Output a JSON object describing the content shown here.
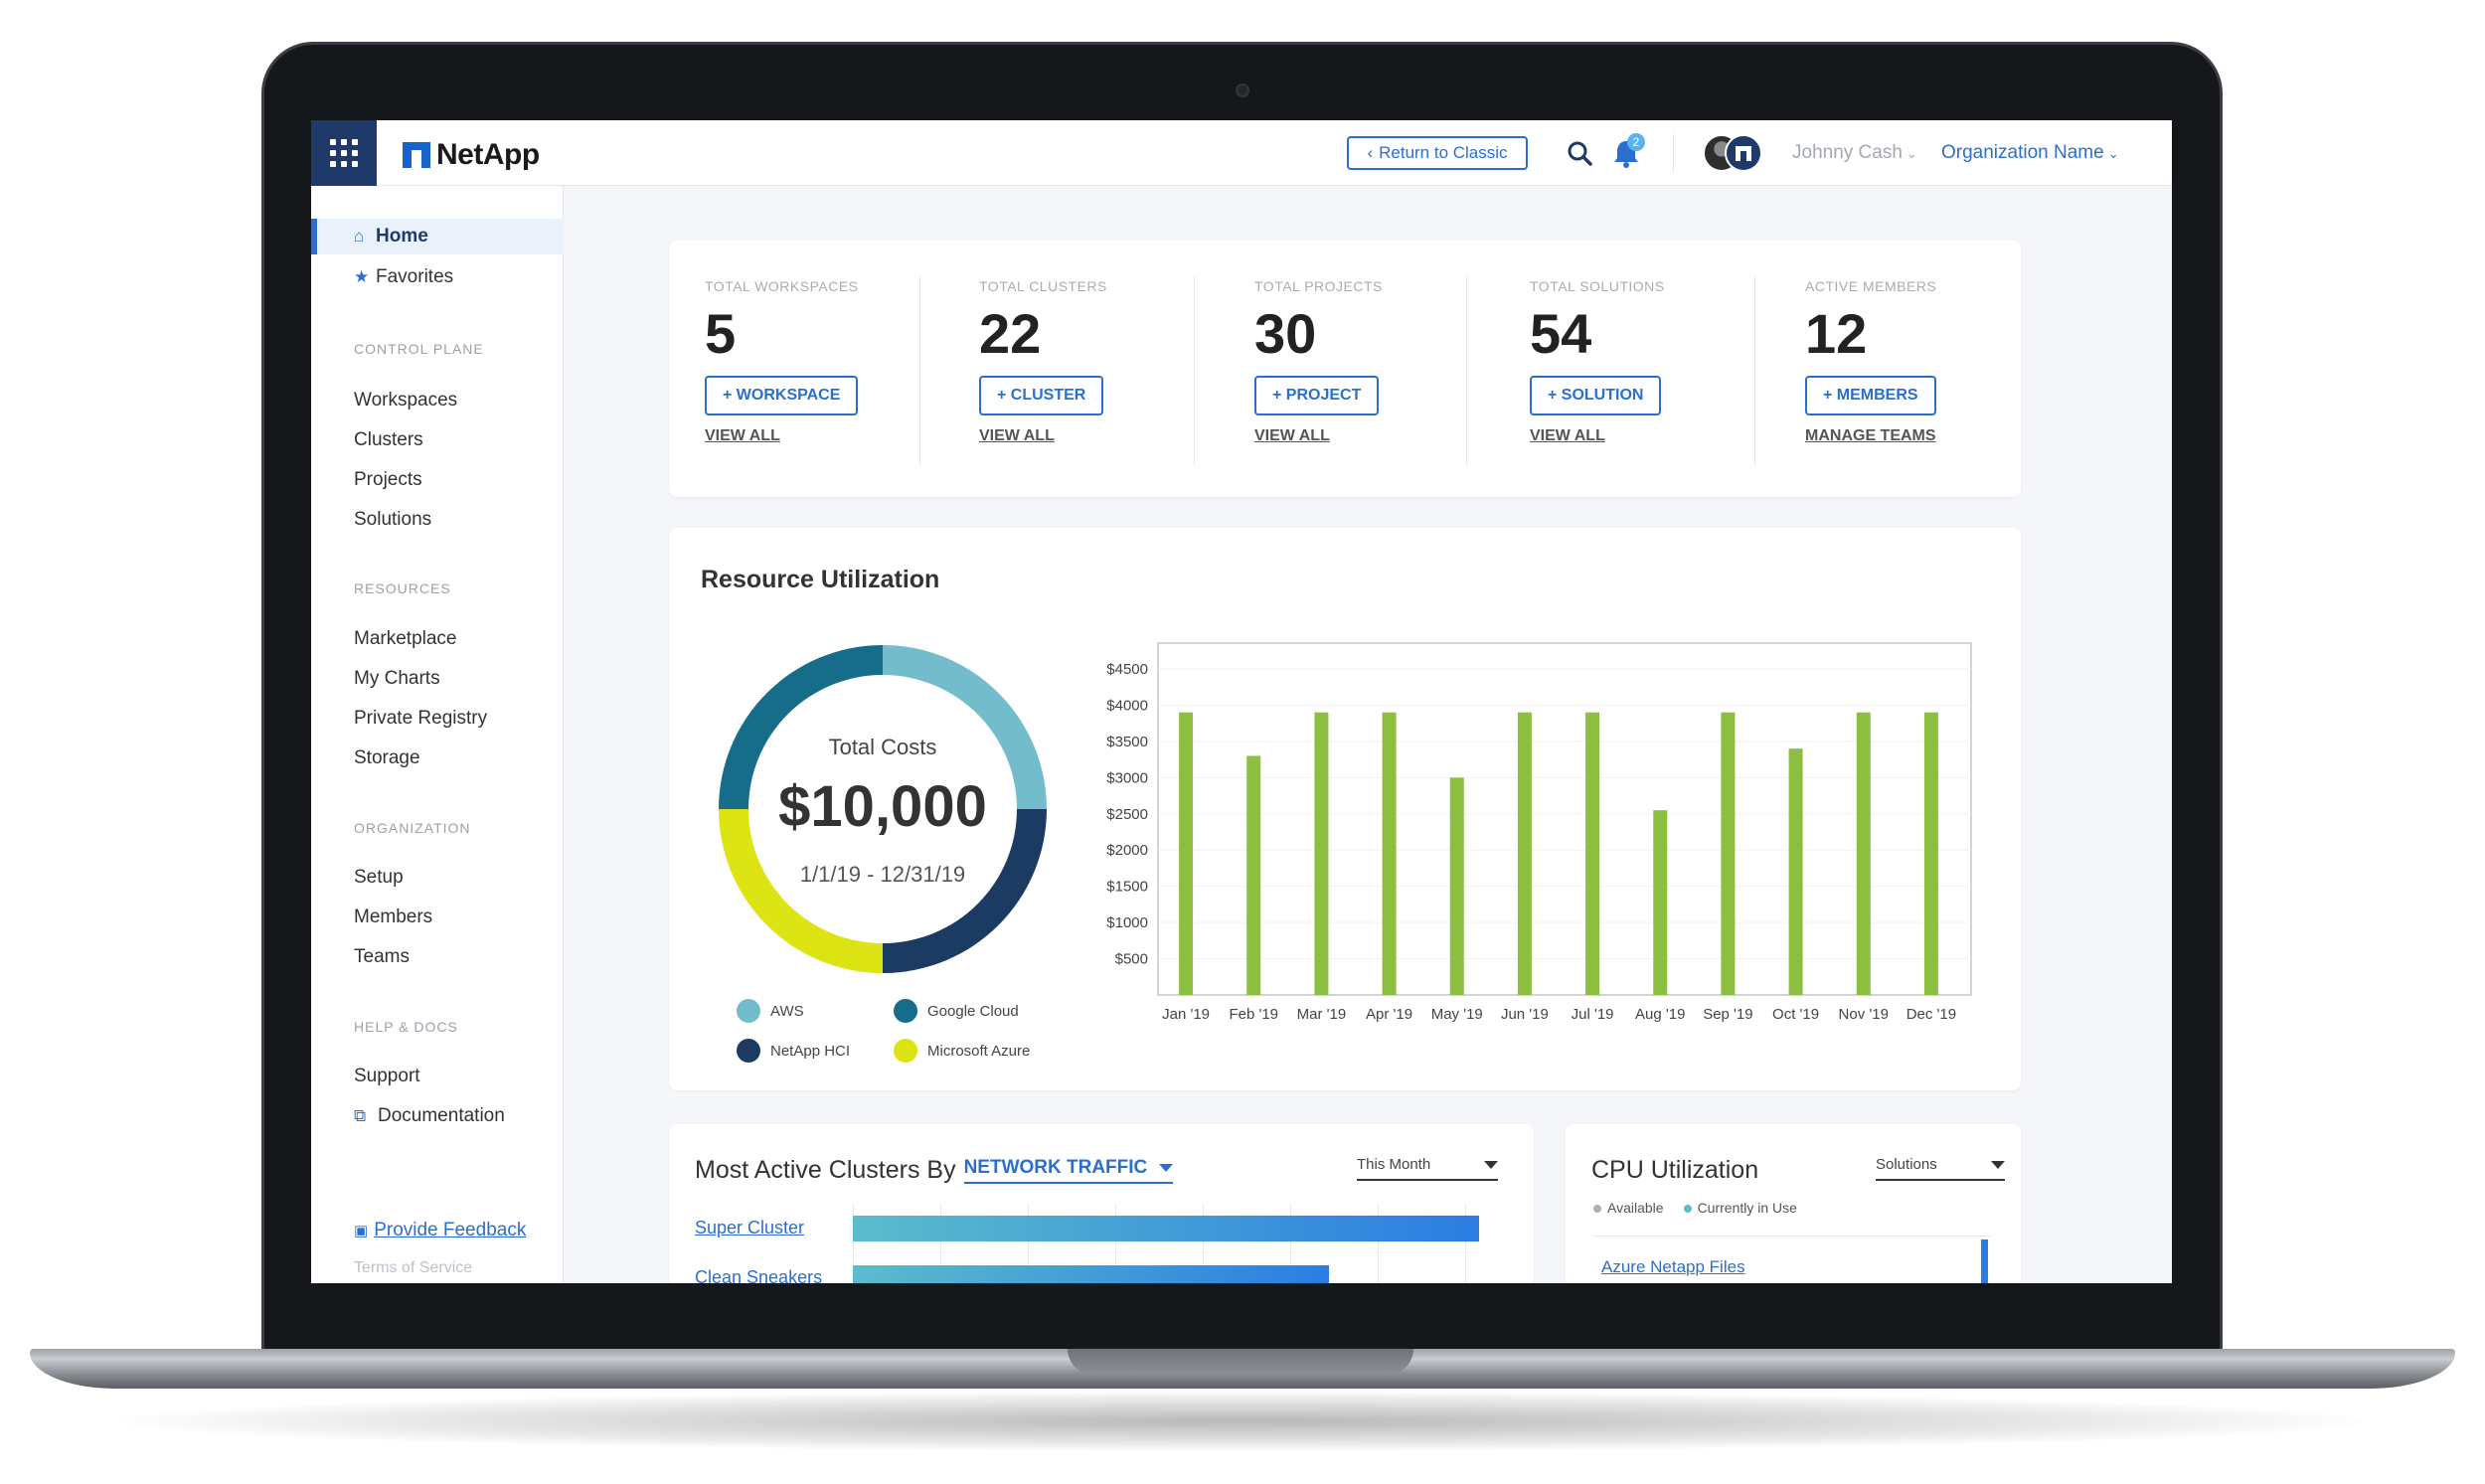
{
  "colors": {
    "brand_navy": "#1f3a68",
    "accent_blue": "#2a6fcf",
    "bar_green": "#8cbf3f",
    "aws": "#72bccc",
    "google_cloud": "#156d8a",
    "netapp_hci": "#1b3b63",
    "microsoft_azure": "#dde414"
  },
  "topbar": {
    "logo_text": "NetApp",
    "return_button": "Return to Classic",
    "return_icon": "chevron-left-icon",
    "notification_count": "2",
    "user_name": "Johnny Cash",
    "org_name": "Organization Name"
  },
  "sidebar": {
    "home": "Home",
    "favorites": "Favorites",
    "sections": [
      {
        "label": "CONTROL PLANE",
        "items": [
          "Workspaces",
          "Clusters",
          "Projects",
          "Solutions"
        ]
      },
      {
        "label": "RESOURCES",
        "items": [
          "Marketplace",
          "My Charts",
          "Private Registry",
          "Storage"
        ]
      },
      {
        "label": "ORGANIZATION",
        "items": [
          "Setup",
          "Members",
          "Teams"
        ]
      },
      {
        "label": "HELP & DOCS",
        "items": [
          "Support",
          "Documentation"
        ]
      }
    ],
    "feedback": "Provide Feedback",
    "terms": "Terms of Service"
  },
  "stats": [
    {
      "label": "TOTAL WORKSPACES",
      "value": "5",
      "button": "+ WORKSPACE",
      "link": "VIEW ALL"
    },
    {
      "label": "TOTAL CLUSTERS",
      "value": "22",
      "button": "+ CLUSTER",
      "link": "VIEW ALL"
    },
    {
      "label": "TOTAL PROJECTS",
      "value": "30",
      "button": "+ PROJECT",
      "link": "VIEW ALL"
    },
    {
      "label": "TOTAL SOLUTIONS",
      "value": "54",
      "button": "+ SOLUTION",
      "link": "VIEW ALL"
    },
    {
      "label": "ACTIVE MEMBERS",
      "value": "12",
      "button": "+ MEMBERS",
      "link": "MANAGE TEAMS"
    }
  ],
  "resource_utilization": {
    "title": "Resource Utilization",
    "total_label": "Total Costs",
    "total_value": "$10,000",
    "date_range": "1/1/19 - 12/31/19",
    "legend": [
      "AWS",
      "Google Cloud",
      "NetApp HCI",
      "Microsoft Azure"
    ]
  },
  "chart_data": [
    {
      "type": "pie",
      "title": "Total Costs",
      "categories": [
        "AWS",
        "NetApp HCI",
        "Microsoft Azure",
        "Google Cloud"
      ],
      "values": [
        25,
        25,
        25,
        25
      ]
    },
    {
      "type": "bar",
      "categories": [
        "Jan '19",
        "Feb '19",
        "Mar '19",
        "Apr '19",
        "May '19",
        "Jun '19",
        "Jul '19",
        "Aug '19",
        "Sep '19",
        "Oct '19",
        "Nov '19",
        "Dec '19"
      ],
      "values": [
        3900,
        3300,
        3900,
        3900,
        3000,
        3900,
        3900,
        2550,
        3900,
        3400,
        3900,
        3900
      ],
      "yticks": [
        "$500",
        "$1000",
        "$1500",
        "$2000",
        "$2500",
        "$3000",
        "$3500",
        "$4000",
        "$4500"
      ],
      "ylim": [
        0,
        4500
      ],
      "xlabel": "",
      "ylabel": ""
    }
  ],
  "clusters": {
    "title": "Most Active Clusters By",
    "metric": "NETWORK TRAFFIC",
    "period": "This Month",
    "rows": [
      {
        "name": "Super Cluster",
        "value": 100
      },
      {
        "name": "Clean Sneakers",
        "value": 76
      }
    ]
  },
  "cpu": {
    "title": "CPU Utilization",
    "filter": "Solutions",
    "legend_available": "Available",
    "legend_in_use": "Currently in Use",
    "first_item": "Azure Netapp Files"
  }
}
